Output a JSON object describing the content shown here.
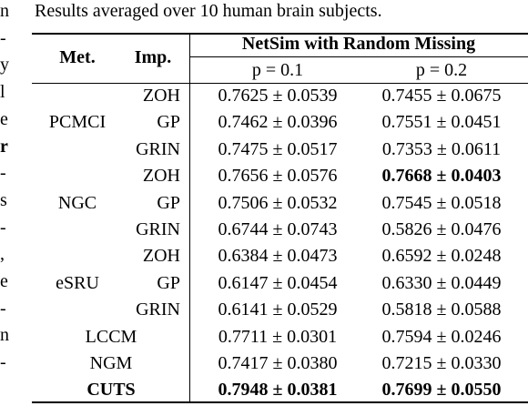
{
  "margin_text": [
    "n",
    "-",
    "y",
    "l",
    "e",
    "r",
    "-",
    "s",
    "-",
    ",",
    "e",
    "-",
    "n",
    "-"
  ],
  "margin_bold": [
    false,
    false,
    false,
    false,
    false,
    true,
    false,
    false,
    false,
    false,
    false,
    false,
    false,
    false
  ],
  "caption": "Results averaged over 10 human brain subjects.",
  "table": {
    "header": {
      "method": "Met.",
      "imputation": "Imp.",
      "group": "NetSim with Random Missing",
      "columns": [
        "p = 0.1",
        "p = 0.2"
      ]
    },
    "groups": [
      {
        "method": "PCMCI",
        "rows": [
          {
            "imputation": "ZOH",
            "values": [
              "0.7625 ± 0.0539",
              "0.7455 ± 0.0675"
            ],
            "bold": [
              false,
              false
            ]
          },
          {
            "imputation": "GP",
            "values": [
              "0.7462 ± 0.0396",
              "0.7551 ± 0.0451"
            ],
            "bold": [
              false,
              false
            ]
          },
          {
            "imputation": "GRIN",
            "values": [
              "0.7475 ± 0.0517",
              "0.7353 ± 0.0611"
            ],
            "bold": [
              false,
              false
            ]
          }
        ]
      },
      {
        "method": "NGC",
        "rows": [
          {
            "imputation": "ZOH",
            "values": [
              "0.7656 ± 0.0576",
              "0.7668 ± 0.0403"
            ],
            "bold": [
              false,
              true
            ]
          },
          {
            "imputation": "GP",
            "values": [
              "0.7506 ± 0.0532",
              "0.7545 ± 0.0518"
            ],
            "bold": [
              false,
              false
            ]
          },
          {
            "imputation": "GRIN",
            "values": [
              "0.6744 ± 0.0743",
              "0.5826 ± 0.0476"
            ],
            "bold": [
              false,
              false
            ]
          }
        ]
      },
      {
        "method": "eSRU",
        "rows": [
          {
            "imputation": "ZOH",
            "values": [
              "0.6384 ± 0.0473",
              "0.6592 ± 0.0248"
            ],
            "bold": [
              false,
              false
            ]
          },
          {
            "imputation": "GP",
            "values": [
              "0.6147 ± 0.0454",
              "0.6330 ± 0.0449"
            ],
            "bold": [
              false,
              false
            ]
          },
          {
            "imputation": "GRIN",
            "values": [
              "0.6141 ± 0.0529",
              "0.5818 ± 0.0588"
            ],
            "bold": [
              false,
              false
            ]
          }
        ]
      },
      {
        "method": "LCCM",
        "rows": [
          {
            "values": [
              "0.7711 ± 0.0301",
              "0.7594 ± 0.0246"
            ],
            "bold": [
              false,
              false
            ]
          }
        ]
      },
      {
        "method": "NGM",
        "rows": [
          {
            "values": [
              "0.7417 ± 0.0380",
              "0.7215 ± 0.0330"
            ],
            "bold": [
              false,
              false
            ]
          }
        ]
      },
      {
        "method": "CUTS",
        "method_bold": true,
        "rows": [
          {
            "values": [
              "0.7948 ± 0.0381",
              "0.7699 ± 0.0550"
            ],
            "bold": [
              true,
              true
            ]
          }
        ]
      }
    ]
  }
}
